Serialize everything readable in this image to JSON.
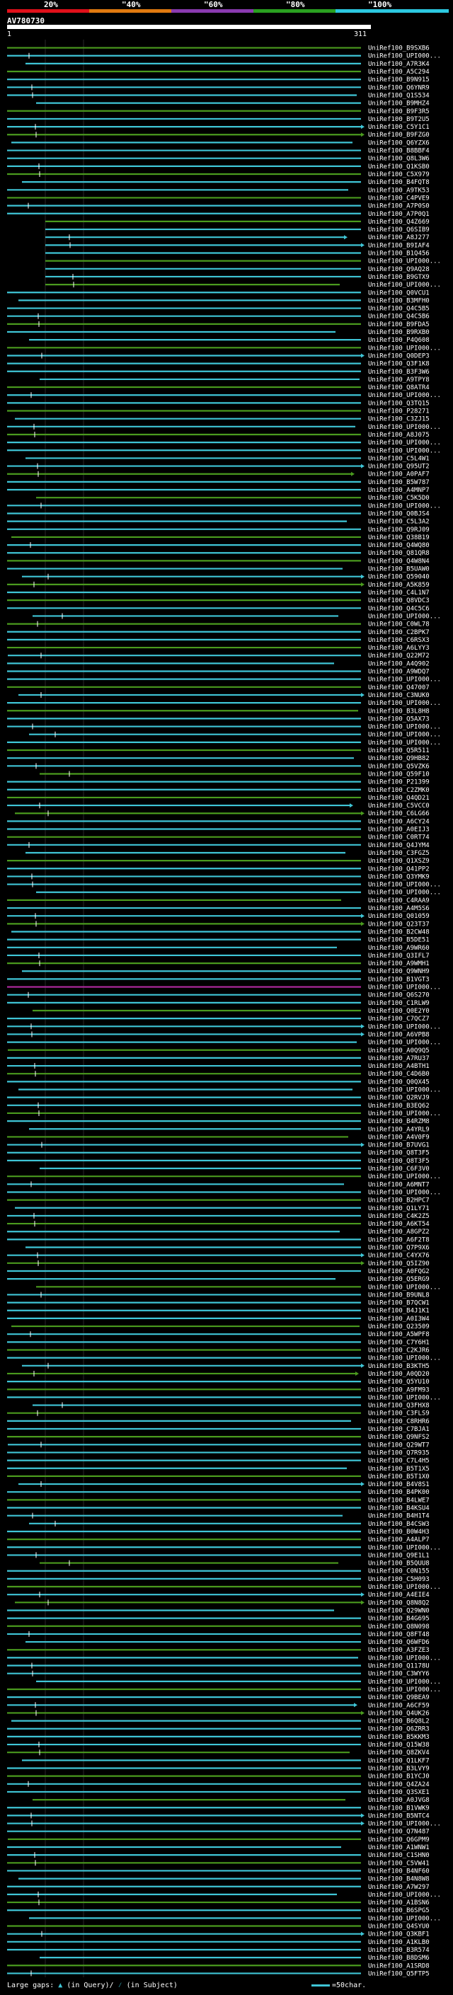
{
  "scale_labels": [
    "20%",
    "\"40%",
    "\"60%",
    "\"80%",
    "\"100%"
  ],
  "scale_colors": [
    "#e0101a",
    "#e07a10",
    "#8a3ab0",
    "#2aa020",
    "#2cc8e0"
  ],
  "query": {
    "name": "AV780730",
    "start": "1",
    "end": "311"
  },
  "hit_colors": {
    "cyan": "#3fc5d6",
    "green": "#4a9a1e",
    "magenta": "#b02aa0"
  },
  "hits": [
    "UniRef100_B9SXB6",
    "UniRef100_UPI000...",
    "UniRef100_A7R3K4",
    "UniRef100_A5C294",
    "UniRef100_B9N915",
    "UniRef100_Q6YNR9",
    "UniRef100_Q1S534",
    "UniRef100_B9MHZ4",
    "UniRef100_B9F3R5",
    "UniRef100_B9T2U5",
    "UniRef100_C5Y1C1",
    "UniRef100_B9FZG0",
    "UniRef100_Q6YZX6",
    "UniRef100_B8BBF4",
    "UniRef100_Q8L3W6",
    "UniRef100_Q1KSB0",
    "UniRef100_C5X979",
    "UniRef100_B4FQT8",
    "UniRef100_A9TK53",
    "UniRef100_C4PVE9",
    "UniRef100_A7P0S0",
    "UniRef100_A7P0Q1",
    "UniRef100_Q4Z669",
    "UniRef100_Q6SIB9",
    "UniRef100_A8J277",
    "UniRef100_B9IAF4",
    "UniRef100_B1Q456",
    "UniRef100_UPI000...",
    "UniRef100_Q9AQ28",
    "UniRef100_B9GTX9",
    "UniRef100_UPI000...",
    "UniRef100_Q0VCU1",
    "UniRef100_B3MFH0",
    "UniRef100_Q4C5B5",
    "UniRef100_Q4C5B6",
    "UniRef100_B9FDA5",
    "UniRef100_B9RXB0",
    "UniRef100_P4Q608",
    "UniRef100_UPI000...",
    "UniRef100_Q0DEP3",
    "UniRef100_Q3F1K8",
    "UniRef100_B3F3W6",
    "UniRef100_A9TPY8",
    "UniRef100_Q8ATR4",
    "UniRef100_UPI000...",
    "UniRef100_Q3TQ15",
    "UniRef100_P28271",
    "UniRef100_C3ZJ15",
    "UniRef100_UPI000...",
    "UniRef100_A8J075",
    "UniRef100_UPI000...",
    "UniRef100_UPI000...",
    "UniRef100_C5L4W1",
    "UniRef100_Q95UT2",
    "UniRef100_A0PAF7",
    "UniRef100_B5W787",
    "UniRef100_A4MNP7",
    "UniRef100_C5K5D0",
    "UniRef100_UPI000...",
    "UniRef100_Q0BJS4",
    "UniRef100_C5L3A2",
    "UniRef100_Q9RJ09",
    "UniRef100_Q38B19",
    "UniRef100_Q4WQ80",
    "UniRef100_Q81QR8",
    "UniRef100_Q4W8N4",
    "UniRef100_B5UAW0",
    "UniRef100_Q59040",
    "UniRef100_A5K859",
    "UniRef100_C4L1N7",
    "UniRef100_Q8VDC3",
    "UniRef100_Q4C5C6",
    "UniRef100_UPI000...",
    "UniRef100_C0WL78",
    "UniRef100_C2BPK7",
    "UniRef100_C6RSX3",
    "UniRef100_A6LYY3",
    "UniRef100_Q22M72",
    "UniRef100_A4Q902",
    "UniRef100_A9WDQ7",
    "UniRef100_UPI000...",
    "UniRef100_Q47007",
    "UniRef100_C3NUK0",
    "UniRef100_UPI000...",
    "UniRef100_B3L8H8",
    "UniRef100_Q5AX73",
    "UniRef100_UPI000...",
    "UniRef100_UPI000...",
    "UniRef100_UPI000...",
    "UniRef100_Q5R511",
    "UniRef100_Q9HB82",
    "UniRef100_Q5VZK6",
    "UniRef100_Q59F10",
    "UniRef100_P21399",
    "UniRef100_C2ZMK0",
    "UniRef100_Q4QD21",
    "UniRef100_C5VCC0",
    "UniRef100_C6LG66",
    "UniRef100_A6CY24",
    "UniRef100_A0EIJ3",
    "UniRef100_C0RT74",
    "UniRef100_Q4JYM4",
    "UniRef100_C3FGZ5",
    "UniRef100_Q1XSZ9",
    "UniRef100_Q41PP2",
    "UniRef100_Q3YMK9",
    "UniRef100_UPI000...",
    "UniRef100_UPI000...",
    "UniRef100_C4RAA9",
    "UniRef100_A4M5S6",
    "UniRef100_Q01059",
    "UniRef100_Q23T37",
    "UniRef100_B2CW48",
    "UniRef100_B5DE51",
    "UniRef100_A9WR60",
    "UniRef100_Q3IFL7",
    "UniRef100_A9WMH1",
    "UniRef100_Q9WNH9",
    "UniRef100_B1VGT3",
    "UniRef100_UPI000...",
    "UniRef100_Q6S270",
    "UniRef100_C1RLW9",
    "UniRef100_Q0E2Y0",
    "UniRef100_C7QCZ7",
    "UniRef100_UPI000...",
    "UniRef100_A6VPB8",
    "UniRef100_UPI000...",
    "UniRef100_A0Q9Q5",
    "UniRef100_A7RU37",
    "UniRef100_A4BTH1",
    "UniRef100_C4D6B0",
    "UniRef100_Q0QX45",
    "UniRef100_UPI000...",
    "UniRef100_Q2RVJ9",
    "UniRef100_B3EQ62",
    "UniRef100_UPI000...",
    "UniRef100_B4RZM8",
    "UniRef100_A4YRL9",
    "UniRef100_A4V0F9",
    "UniRef100_B7UVG1",
    "UniRef100_Q8T3F5",
    "UniRef100_Q8T3F5",
    "UniRef100_C6F3V0",
    "UniRef100_UPI000...",
    "UniRef100_A6MNT7",
    "UniRef100_UPI000...",
    "UniRef100_B2HPC7",
    "UniRef100_Q1LY71",
    "UniRef100_C4K2Z5",
    "UniRef100_A6KT54",
    "UniRef100_A8GPZ2",
    "UniRef100_A6F2T8",
    "UniRef100_Q7P9X6",
    "UniRef100_C4YX76",
    "UniRef100_Q5IZ90",
    "UniRef100_A0FQG2",
    "UniRef100_Q5ERG9",
    "UniRef100_UPI000...",
    "UniRef100_B9UNL8",
    "UniRef100_B7QCW1",
    "UniRef100_B4J1K1",
    "UniRef100_A0I3W4",
    "UniRef100_Q23509",
    "UniRef100_A5WPF8",
    "UniRef100_C7Y6H1",
    "UniRef100_C2KJR6",
    "UniRef100_UPI000...",
    "UniRef100_B3KTH5",
    "UniRef100_A0QD20",
    "UniRef100_Q5YU10",
    "UniRef100_A9FM93",
    "UniRef100_UPI000...",
    "UniRef100_Q3FHX8",
    "UniRef100_C3FLS9",
    "UniRef100_C8RHR6",
    "UniRef100_C7BJA1",
    "UniRef100_Q9NFS2",
    "UniRef100_Q29WT7",
    "UniRef100_Q7R935",
    "UniRef100_C7L4H5",
    "UniRef100_B5T1X5",
    "UniRef100_B5T1X0",
    "UniRef100_B4V8S1",
    "UniRef100_B4PK00",
    "UniRef100_B4LWE7",
    "UniRef100_B4KSU4",
    "UniRef100_B4H1T4",
    "UniRef100_B4CSW3",
    "UniRef100_B0W4H3",
    "UniRef100_A4ALP7",
    "UniRef100_UPI000...",
    "UniRef100_Q9E1L1",
    "UniRef100_B5QUU8",
    "UniRef100_C0N155",
    "UniRef100_C5H093",
    "UniRef100_UPI000...",
    "UniRef100_A4EIE4",
    "UniRef100_Q8N8Q2",
    "UniRef100_Q29WN0",
    "UniRef100_B4G695",
    "UniRef100_Q8N098",
    "UniRef100_Q8FT48",
    "UniRef100_Q6WFD6",
    "UniRef100_A3FZE3",
    "UniRef100_UPI000...",
    "UniRef100_Q1178U",
    "UniRef100_C3WYY6",
    "UniRef100_UPI000...",
    "UniRef100_UPI000...",
    "UniRef100_Q9BEA9",
    "UniRef100_A6CF59",
    "UniRef100_Q4UK26",
    "UniRef100_B6Q8L2",
    "UniRef100_Q6ZRR3",
    "UniRef100_B5KKM3",
    "UniRef100_Q15W38",
    "UniRef100_Q8ZKV4",
    "UniRef100_Q1LKF7",
    "UniRef100_B3LVY9",
    "UniRef100_B1YCJ0",
    "UniRef100_Q4ZA24",
    "UniRef100_Q3SXE1",
    "UniRef100_A0JVG8",
    "UniRef100_B1VWK9",
    "UniRef100_B5NTC4",
    "UniRef100_UPI000...",
    "UniRef100_Q7N487",
    "UniRef100_Q6GPM9",
    "UniRef100_A1WNW1",
    "UniRef100_C1SHN0",
    "UniRef100_C5VW41",
    "UniRef100_B4NF60",
    "UniRef100_B4N8W8",
    "UniRef100_A7W297",
    "UniRef100_UPI000...",
    "UniRef100_A1BSN6",
    "UniRef100_B6SPG5",
    "UniRef100_UPI000...",
    "UniRef100_Q4SYU0",
    "UniRef100_Q3KBF1",
    "UniRef100_A1KLB0",
    "UniRef100_B3R574",
    "UniRef100_B8DSM6",
    "UniRef100_A1SRD8",
    "UniRef100_Q5FTP5"
  ],
  "footer": {
    "large_gaps": "Large gaps:",
    "in_query": "(in Query)/",
    "in_subject": "(in Subject)"
  },
  "legend": {
    "label": "=50char."
  }
}
